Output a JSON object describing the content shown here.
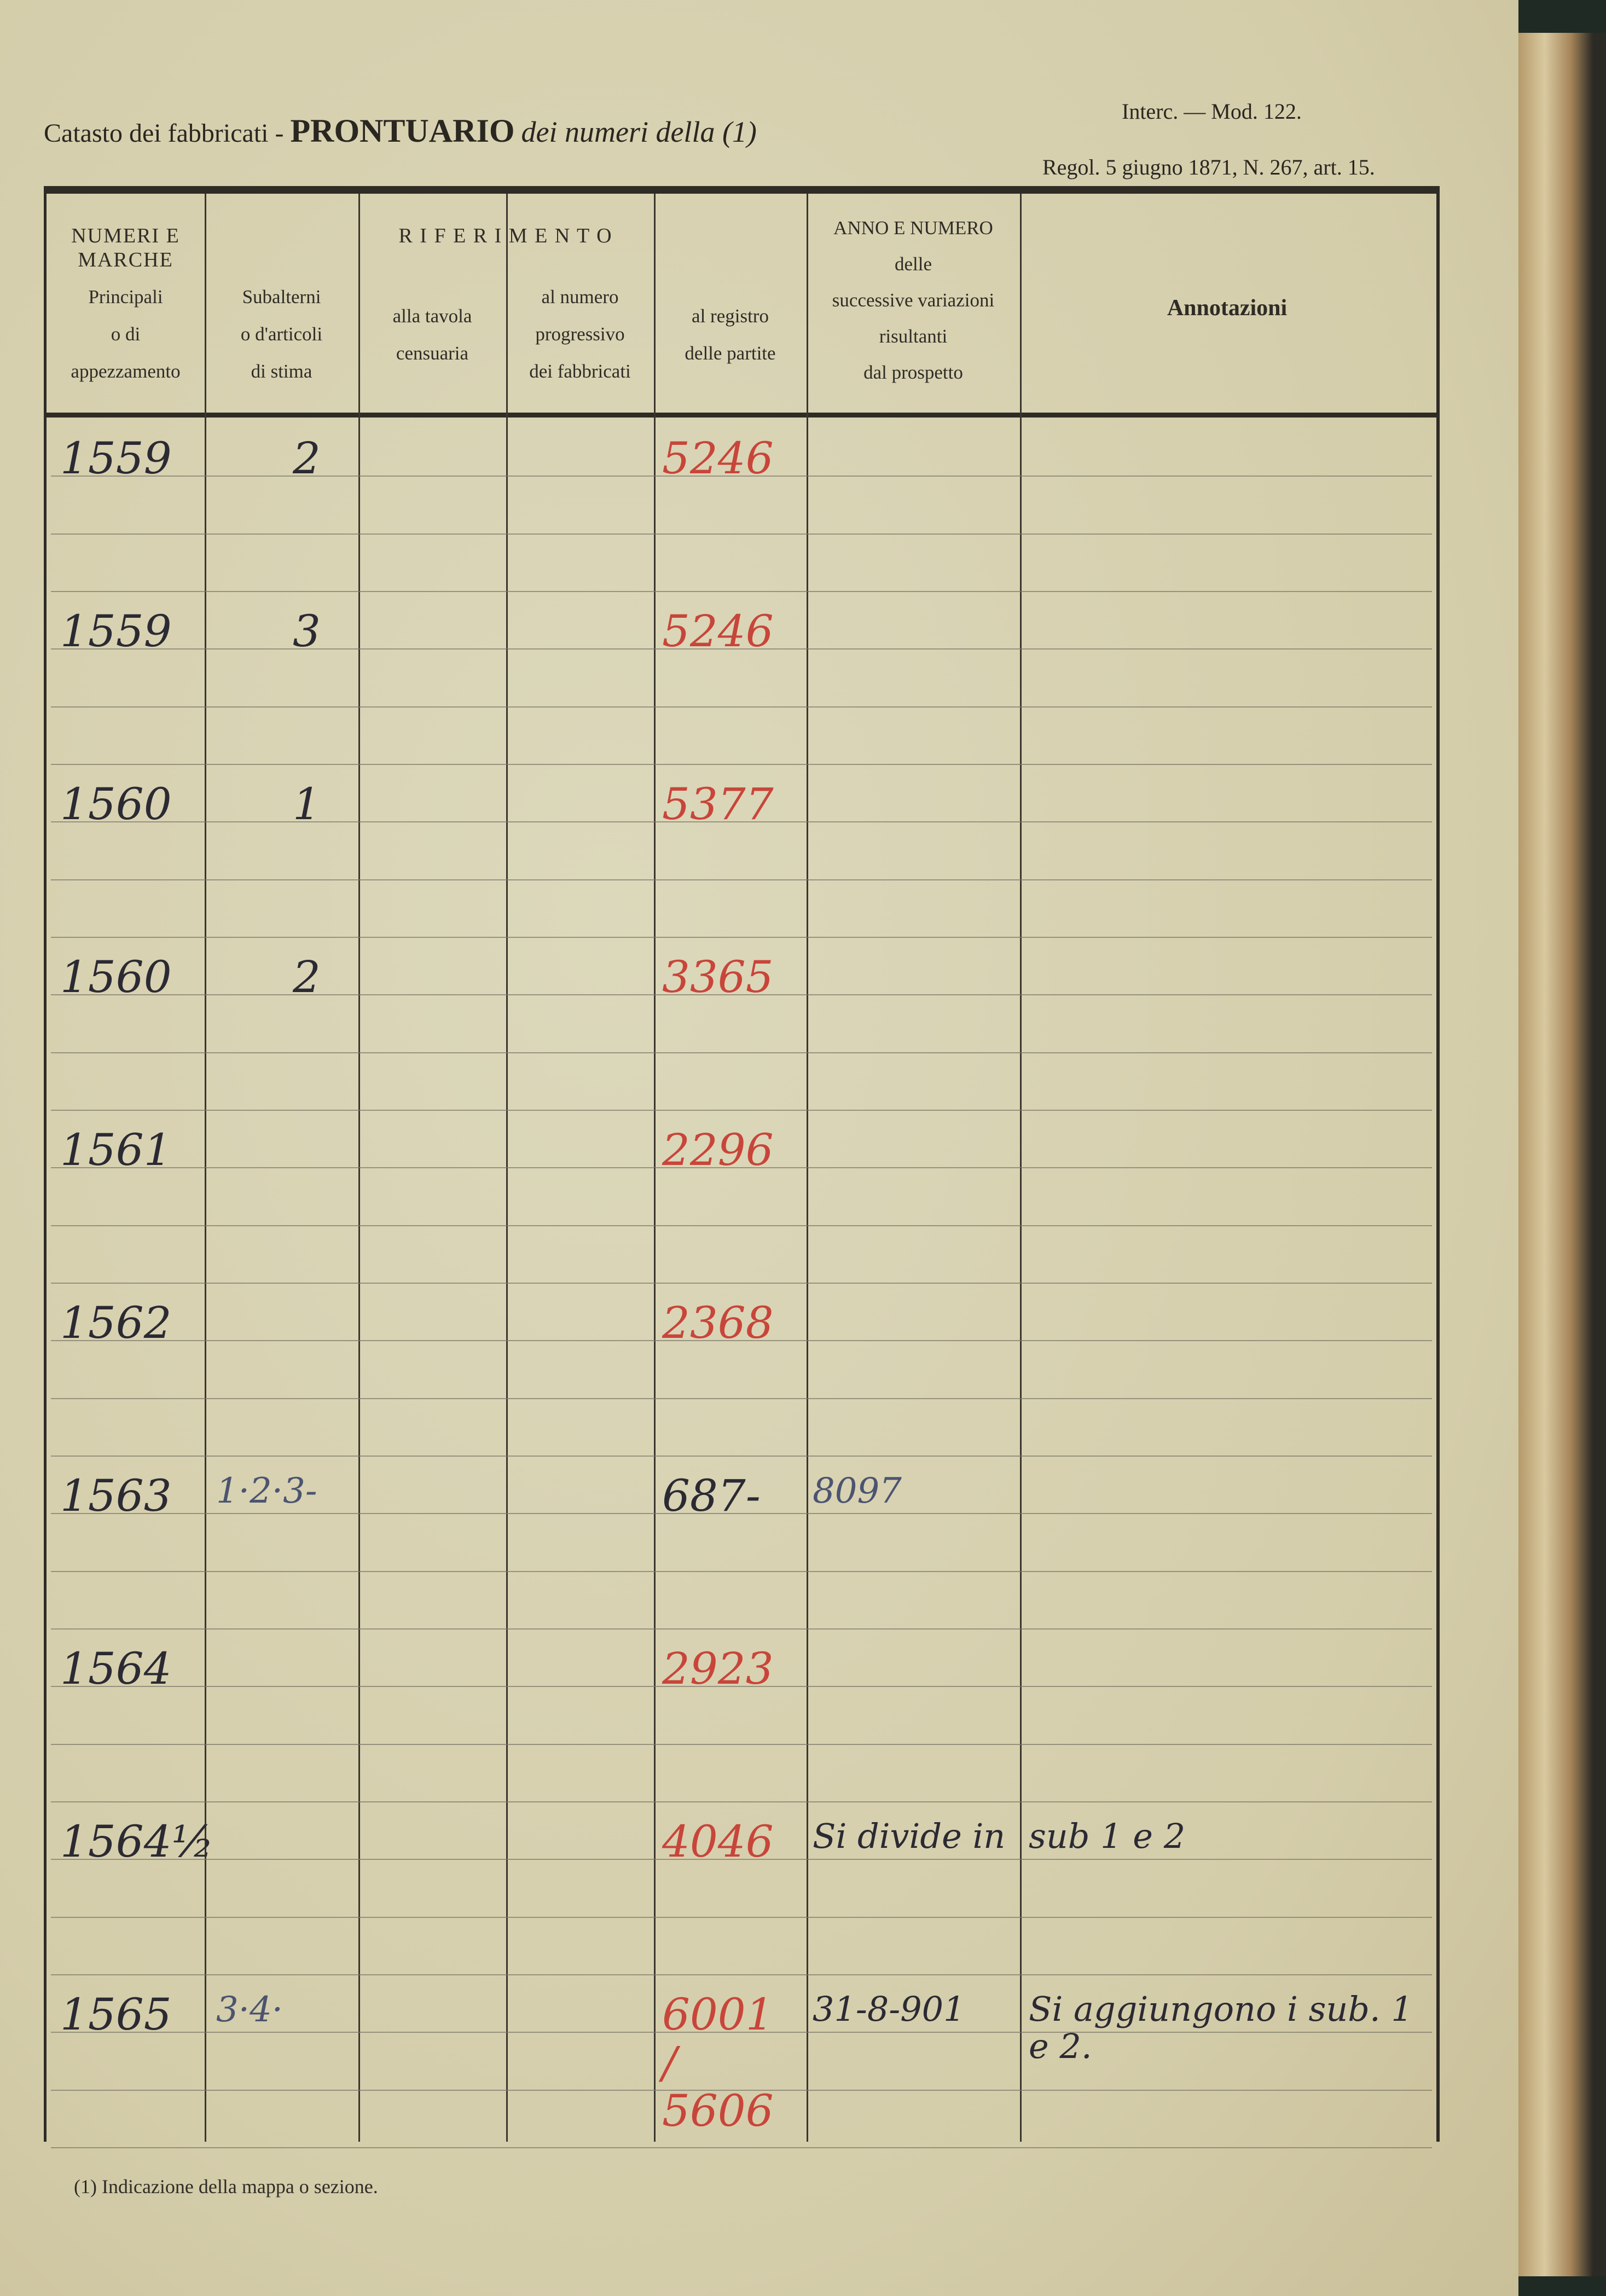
{
  "header": {
    "title_prefix": "Catasto dei fabbricati -",
    "title_main": "PRONTUARIO",
    "title_suffix": "dei numeri della (1)",
    "model": "Interc. — Mod. 122.",
    "regulation": "Regol. 5 giugno 1871, N. 267, art. 15."
  },
  "columns": {
    "group_numeri": "NUMERI E MARCHE",
    "group_riferimento": "R I F E R I M E N T O",
    "principali": "Principali\no di\nappezzamento",
    "subalterni": "Subalterni\no d'articoli\ndi stima",
    "tavola": "alla tavola\ncensuaria",
    "progressivo": "al numero\nprogressivo\ndei fabbricati",
    "registro": "al registro\ndelle partite",
    "anno_numero": "ANNO E NUMERO\ndelle\nsuccessive variazioni\nrisultanti\ndal prospetto",
    "annotazioni": "Annotazioni"
  },
  "rows": [
    {
      "principale": "1559",
      "subalterno": "2",
      "registro": "5246",
      "variazioni": "",
      "annotazioni": ""
    },
    {
      "principale": "1559",
      "subalterno": "3",
      "registro": "5246",
      "variazioni": "",
      "annotazioni": ""
    },
    {
      "principale": "1560",
      "subalterno": "1",
      "registro": "5377",
      "variazioni": "",
      "annotazioni": ""
    },
    {
      "principale": "1560",
      "subalterno": "2",
      "registro": "3365",
      "variazioni": "",
      "annotazioni": ""
    },
    {
      "principale": "1561",
      "subalterno": "",
      "registro": "2296",
      "variazioni": "",
      "annotazioni": ""
    },
    {
      "principale": "1562",
      "subalterno": "",
      "registro": "2368",
      "variazioni": "",
      "annotazioni": ""
    },
    {
      "principale": "1563",
      "subalterno": "1·2·3-",
      "registro": "687-",
      "variazioni": "8097",
      "annotazioni": ""
    },
    {
      "principale": "1564",
      "subalterno": "",
      "registro": "2923",
      "variazioni": "",
      "annotazioni": ""
    },
    {
      "principale": "1564½",
      "subalterno": "",
      "registro": "4046",
      "variazioni": "Si divide in",
      "annotazioni": "sub 1 e 2"
    },
    {
      "principale": "1565",
      "subalterno": "3·4·",
      "registro": "6001 / 5606",
      "variazioni": "31-8-901",
      "annotazioni": "Si aggiungono i sub. 1 e 2."
    }
  ],
  "colors": {
    "paper": "#d8d3b3",
    "ink": "#2b2a33",
    "red_ink": "#c8453a"
  },
  "footnote": "(1) Indicazione della mappa o sezione."
}
